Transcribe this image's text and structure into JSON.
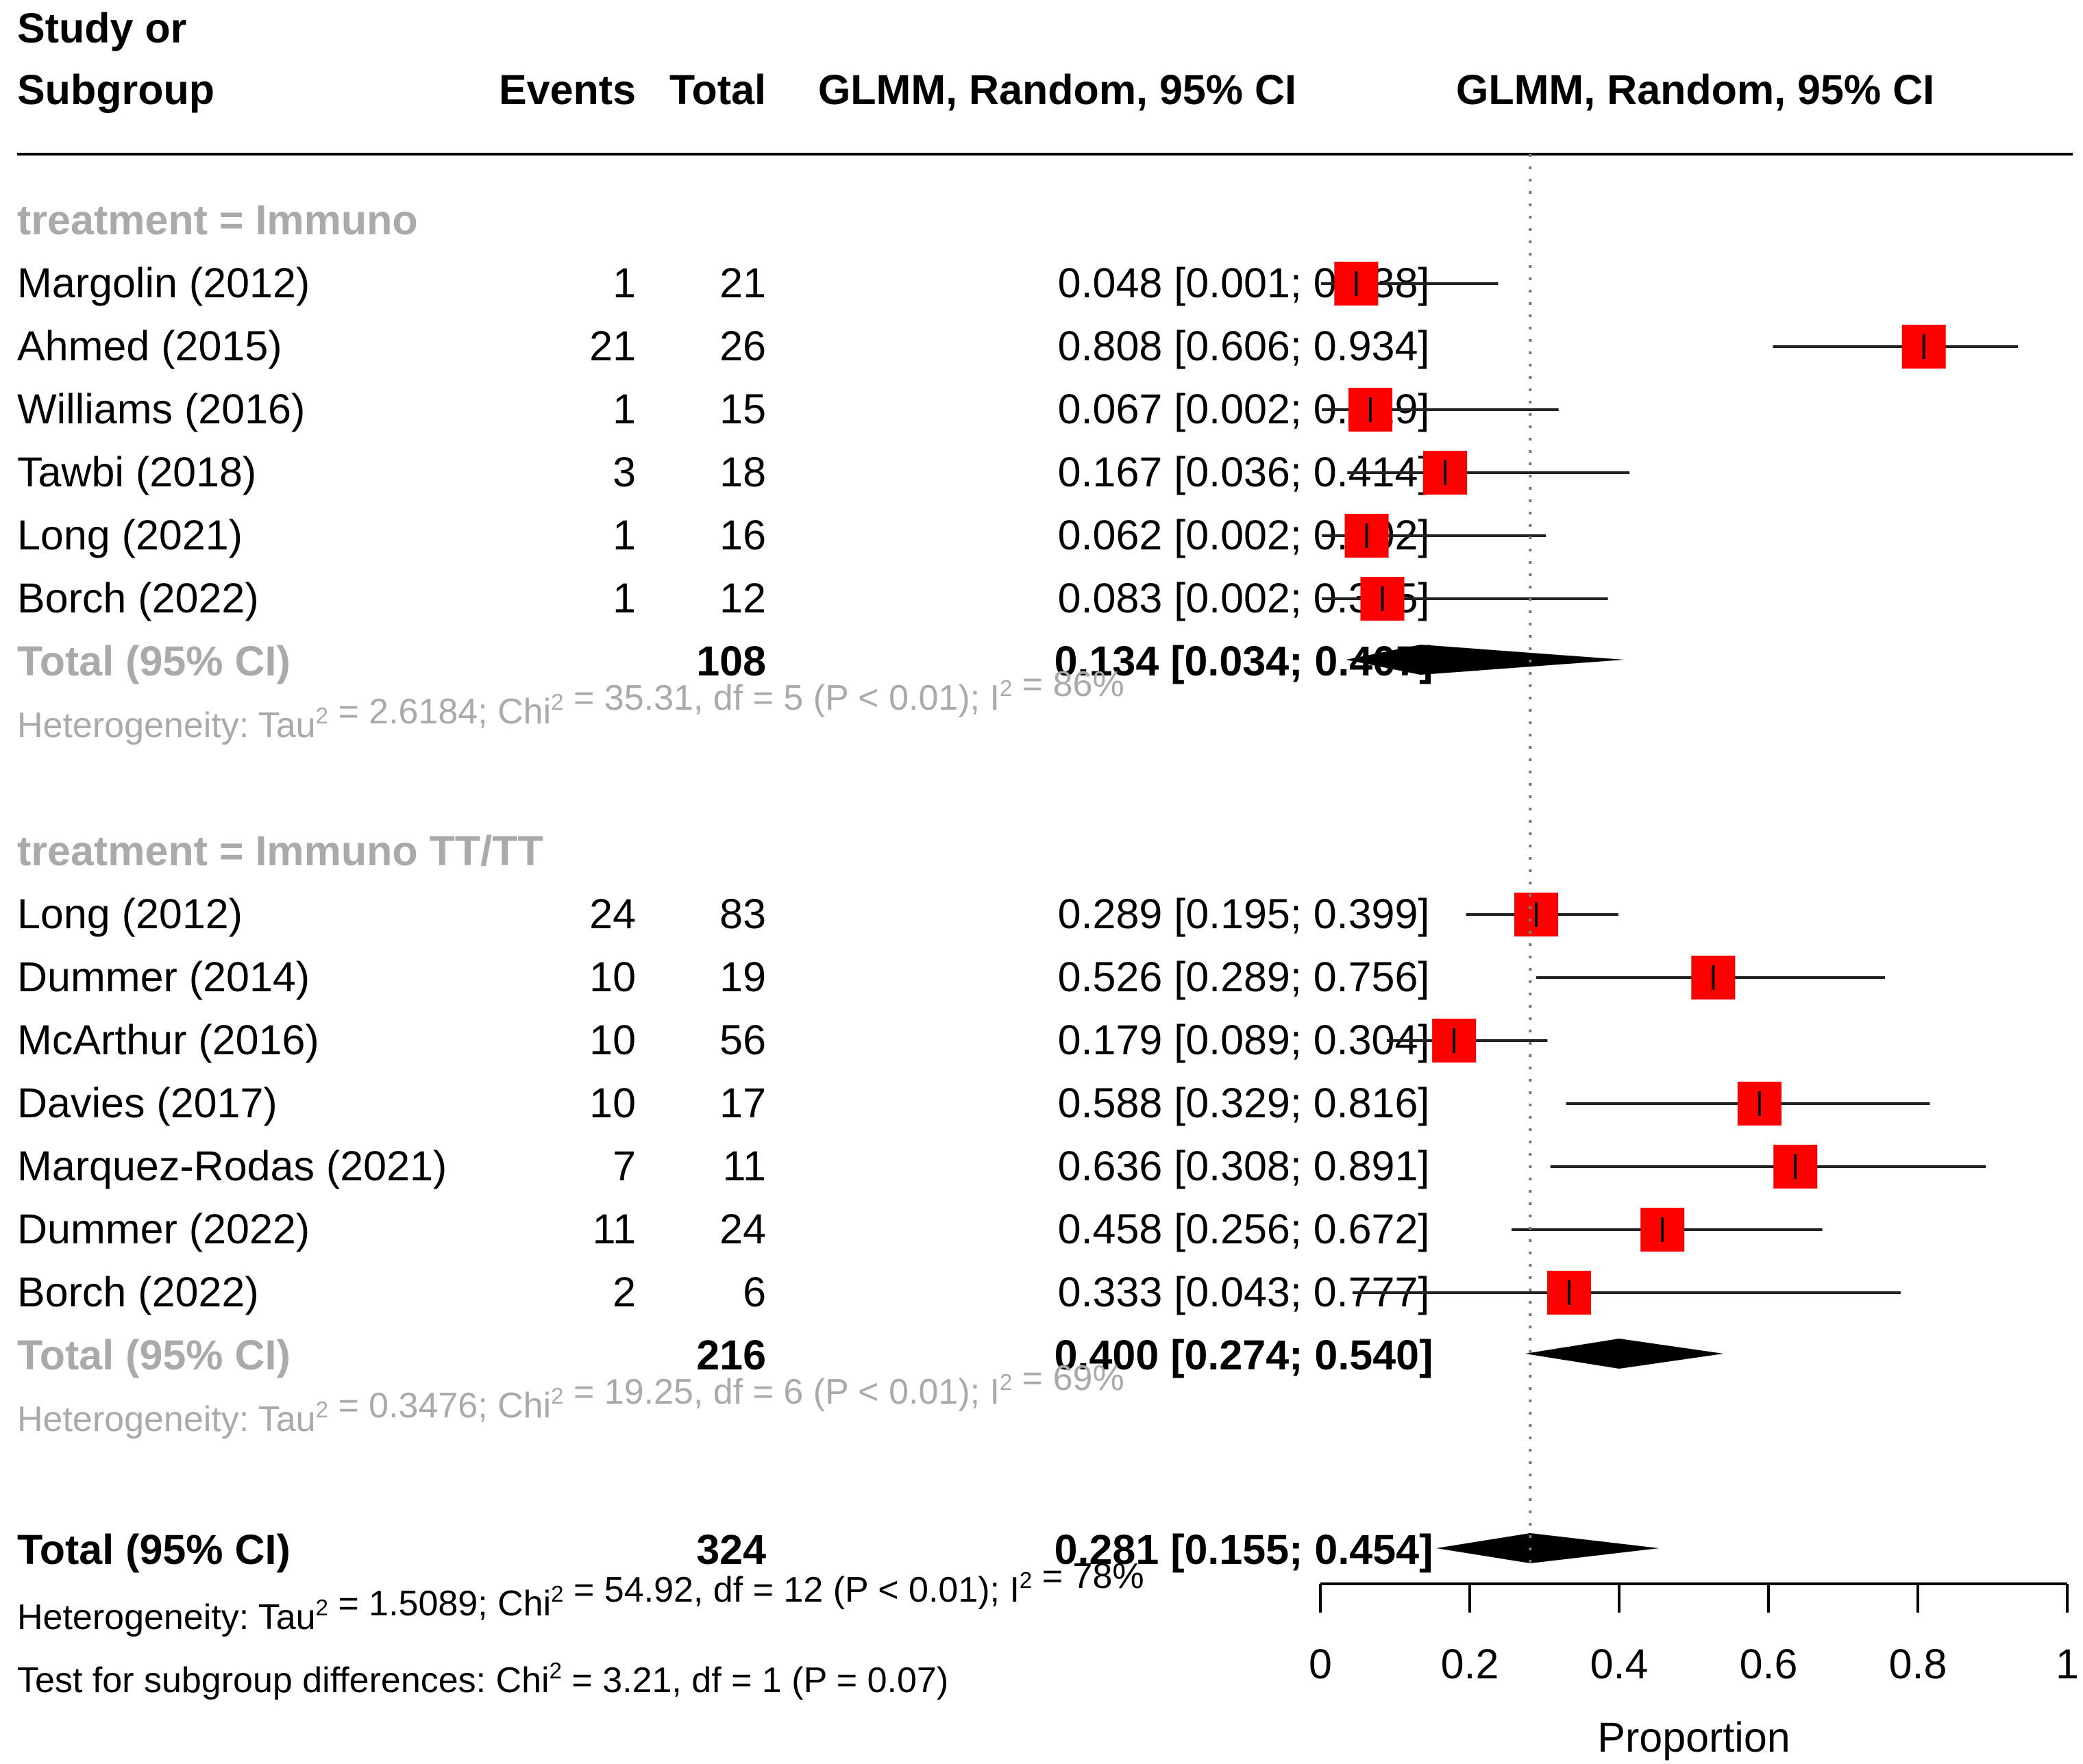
{
  "header": {
    "col_study_line1": "Study or",
    "col_study_line2": "Subgroup",
    "col_events": "Events",
    "col_total": "Total",
    "col_estimate": "GLMM, Random, 95% CI",
    "col_plot": "GLMM, Random, 95% CI"
  },
  "chart_data": {
    "type": "forest",
    "xlabel": "Proportion",
    "xlim": [
      0,
      1
    ],
    "xticks": [
      "0",
      "0.2",
      "0.4",
      "0.6",
      "0.8",
      "1"
    ],
    "reference_line": 0.281,
    "marker_color": "#ff0000",
    "subgroups": [
      {
        "label": "treatment = Immuno",
        "studies": [
          {
            "study": "Margolin (2012)",
            "events": "1",
            "total": "21",
            "est": 0.048,
            "lo": 0.001,
            "hi": 0.238,
            "text": "0.048 [0.001; 0.238]"
          },
          {
            "study": "Ahmed (2015)",
            "events": "21",
            "total": "26",
            "est": 0.808,
            "lo": 0.606,
            "hi": 0.934,
            "text": "0.808 [0.606; 0.934]"
          },
          {
            "study": "Williams (2016)",
            "events": "1",
            "total": "15",
            "est": 0.067,
            "lo": 0.002,
            "hi": 0.319,
            "text": "0.067 [0.002; 0.319]"
          },
          {
            "study": "Tawbi (2018)",
            "events": "3",
            "total": "18",
            "est": 0.167,
            "lo": 0.036,
            "hi": 0.414,
            "text": "0.167 [0.036; 0.414]"
          },
          {
            "study": "Long (2021)",
            "events": "1",
            "total": "16",
            "est": 0.062,
            "lo": 0.002,
            "hi": 0.302,
            "text": "0.062 [0.002; 0.302]"
          },
          {
            "study": "Borch (2022)",
            "events": "1",
            "total": "12",
            "est": 0.083,
            "lo": 0.002,
            "hi": 0.385,
            "text": "0.083 [0.002; 0.385]"
          }
        ],
        "pooled": {
          "label": "Total (95% CI)",
          "total": "108",
          "est": 0.134,
          "lo": 0.034,
          "hi": 0.407,
          "text": "0.134 [0.034; 0.407]"
        },
        "heterogeneity": {
          "prefix": "Heterogeneity: Tau",
          "mid": " = 2.6184; Chi",
          "mid2": " = 35.31, df = 5 (P < 0.01); I",
          "suffix": " = 86%",
          "sup": "2"
        }
      },
      {
        "label": "treatment = Immuno TT/TT",
        "studies": [
          {
            "study": "Long (2012)",
            "events": "24",
            "total": "83",
            "est": 0.289,
            "lo": 0.195,
            "hi": 0.399,
            "text": "0.289 [0.195; 0.399]"
          },
          {
            "study": "Dummer (2014)",
            "events": "10",
            "total": "19",
            "est": 0.526,
            "lo": 0.289,
            "hi": 0.756,
            "text": "0.526 [0.289; 0.756]"
          },
          {
            "study": "McArthur (2016)",
            "events": "10",
            "total": "56",
            "est": 0.179,
            "lo": 0.089,
            "hi": 0.304,
            "text": "0.179 [0.089; 0.304]"
          },
          {
            "study": "Davies (2017)",
            "events": "10",
            "total": "17",
            "est": 0.588,
            "lo": 0.329,
            "hi": 0.816,
            "text": "0.588 [0.329; 0.816]"
          },
          {
            "study": "Marquez-Rodas (2021)",
            "events": "7",
            "total": "11",
            "est": 0.636,
            "lo": 0.308,
            "hi": 0.891,
            "text": "0.636 [0.308; 0.891]"
          },
          {
            "study": "Dummer (2022)",
            "events": "11",
            "total": "24",
            "est": 0.458,
            "lo": 0.256,
            "hi": 0.672,
            "text": "0.458 [0.256; 0.672]"
          },
          {
            "study": "Borch (2022)",
            "events": "2",
            "total": "6",
            "est": 0.333,
            "lo": 0.043,
            "hi": 0.777,
            "text": "0.333 [0.043; 0.777]"
          }
        ],
        "pooled": {
          "label": "Total (95% CI)",
          "total": "216",
          "est": 0.4,
          "lo": 0.274,
          "hi": 0.54,
          "text": "0.400 [0.274; 0.540]"
        },
        "heterogeneity": {
          "prefix": "Heterogeneity: Tau",
          "mid": " = 0.3476; Chi",
          "mid2": " = 19.25, df = 6 (P < 0.01); I",
          "suffix": " = 69%",
          "sup": "2"
        }
      }
    ],
    "overall": {
      "label": "Total (95% CI)",
      "total": "324",
      "est": 0.281,
      "lo": 0.155,
      "hi": 0.454,
      "text": "0.281 [0.155; 0.454]",
      "heterogeneity": {
        "prefix": "Heterogeneity: Tau",
        "mid": " = 1.5089; Chi",
        "mid2": " = 54.92, df = 12 (P < 0.01); I",
        "suffix": " = 78%",
        "sup": "2"
      },
      "subgroup_test": {
        "prefix": "Test for subgroup differences: Chi",
        "suffix": " = 3.21, df = 1 (P = 0.07)",
        "sup": "2"
      }
    }
  }
}
